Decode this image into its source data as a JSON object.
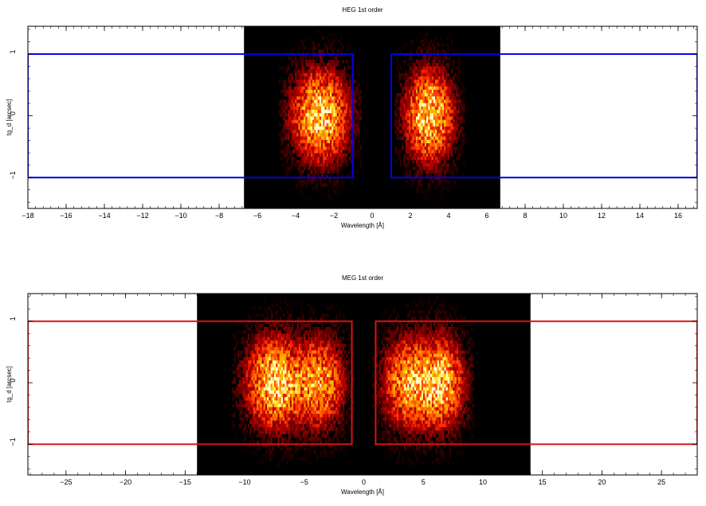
{
  "chart_data": [
    {
      "type": "heatmap",
      "title": "HEG 1st order",
      "xlabel": "Wavelength [Å]",
      "ylabel": "tg_d [arcsec]",
      "xlim": [
        -18,
        17
      ],
      "ylim": [
        -1.5,
        1.45
      ],
      "xticks": [
        -18,
        -16,
        -14,
        -12,
        -10,
        -8,
        -6,
        -4,
        -2,
        0,
        2,
        4,
        6,
        8,
        10,
        12,
        14,
        16
      ],
      "xtick_labels": [
        "−18",
        "−16",
        "−14",
        "−12",
        "−10",
        "−8",
        "−6",
        "−4",
        "−2",
        "0",
        "2",
        "4",
        "6",
        "8",
        "10",
        "12",
        "14",
        "16"
      ],
      "yticks": [
        -1,
        0,
        1
      ],
      "ytick_labels": [
        "−1",
        "0",
        "1"
      ],
      "image_region": {
        "xmin": -6.7,
        "xmax": 6.7
      },
      "emission_blobs": [
        {
          "center": -2.7,
          "half_width": 1.9,
          "peak": 1.0
        },
        {
          "center": 3.0,
          "half_width": 1.6,
          "peak": 1.0
        }
      ],
      "extraction_regions": [
        {
          "xmin": -18,
          "xmax": -1,
          "ymin": -1,
          "ymax": 1
        },
        {
          "xmin": 1,
          "xmax": 17,
          "ymin": -1,
          "ymax": 1
        }
      ],
      "region_color": "#0000ee"
    },
    {
      "type": "heatmap",
      "title": "MEG 1st order",
      "xlabel": "Wavelength [Å]",
      "ylabel": "tg_d [arcsec]",
      "xlim": [
        -28.2,
        28
      ],
      "ylim": [
        -1.5,
        1.45
      ],
      "xticks": [
        -25,
        -20,
        -15,
        -10,
        -5,
        0,
        5,
        10,
        15,
        20,
        25
      ],
      "xtick_labels": [
        "−25",
        "−20",
        "−15",
        "−10",
        "−5",
        "0",
        "5",
        "10",
        "15",
        "20",
        "25"
      ],
      "yticks": [
        -1,
        0,
        1
      ],
      "ytick_labels": [
        "−1",
        "0",
        "1"
      ],
      "image_region": {
        "xmin": -14,
        "xmax": 14
      },
      "emission_blobs": [
        {
          "center": -7.3,
          "half_width": 3.3,
          "peak": 1.0
        },
        {
          "center": -3.3,
          "half_width": 2.2,
          "peak": 0.75
        },
        {
          "center": 3.2,
          "half_width": 2.2,
          "peak": 0.75
        },
        {
          "center": 6.3,
          "half_width": 2.6,
          "peak": 1.0
        }
      ],
      "extraction_regions": [
        {
          "xmin": -28.2,
          "xmax": -1,
          "ymin": -1,
          "ymax": 1
        },
        {
          "xmin": 1,
          "xmax": 28,
          "ymin": -1,
          "ymax": 1
        }
      ],
      "region_color": "#dd1111"
    }
  ]
}
